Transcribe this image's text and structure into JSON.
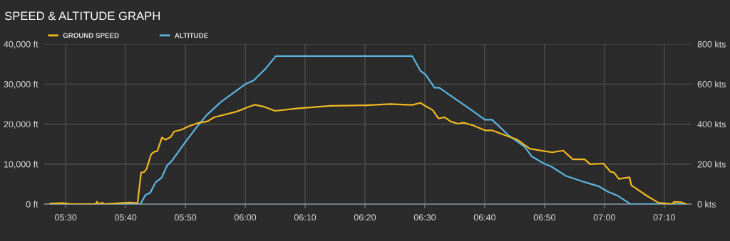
{
  "chart_data": {
    "type": "line",
    "title": "SPEED & ALTITUDE GRAPH",
    "series": [
      {
        "name": "GROUND SPEED",
        "color": "#f0b823",
        "axis": "y2",
        "x": [
          5.457,
          5.495,
          5.515,
          5.583,
          5.587,
          5.592,
          5.602,
          5.608,
          5.678,
          5.7,
          5.71,
          5.718,
          5.725,
          5.738,
          5.748,
          5.755,
          5.768,
          5.778,
          5.792,
          5.802,
          5.822,
          5.842,
          5.867,
          5.895,
          5.913,
          5.973,
          5.987,
          6.0,
          6.027,
          6.05,
          6.083,
          6.143,
          6.237,
          6.337,
          6.402,
          6.465,
          6.488,
          6.502,
          6.522,
          6.538,
          6.555,
          6.572,
          6.592,
          6.608,
          6.635,
          6.667,
          6.687,
          6.705,
          6.732,
          6.758,
          6.792,
          6.833,
          6.855,
          6.885,
          6.912,
          6.945,
          6.96,
          6.997,
          7.017,
          7.027,
          7.04,
          7.07,
          7.075,
          7.117,
          7.15,
          7.19,
          7.193,
          7.213,
          7.227
        ],
        "values": [
          3,
          5,
          0,
          0,
          12,
          0,
          7,
          0,
          8,
          5,
          158,
          160,
          175,
          250,
          263,
          265,
          333,
          322,
          335,
          363,
          372,
          389,
          405,
          414,
          434,
          461,
          470,
          480,
          497,
          488,
          466,
          478,
          491,
          494,
          500,
          496,
          506,
          490,
          470,
          428,
          434,
          413,
          402,
          407,
          393,
          369,
          369,
          357,
          339,
          322,
          277,
          265,
          259,
          268,
          224,
          224,
          200,
          203,
          162,
          158,
          126,
          134,
          94,
          43,
          7,
          0,
          11,
          10,
          0
        ]
      },
      {
        "name": "ALTITUDE",
        "color": "#5bb5e2",
        "x": [
          5.457,
          5.708,
          5.722,
          5.735,
          5.75,
          5.767,
          5.782,
          5.797,
          5.833,
          5.867,
          5.893,
          5.933,
          5.973,
          6.0,
          6.023,
          6.057,
          6.085,
          6.465,
          6.488,
          6.502,
          6.527,
          6.54,
          6.635,
          6.667,
          6.687,
          6.732,
          6.778,
          6.798,
          6.833,
          6.852,
          6.892,
          6.945,
          6.983,
          7.01,
          7.037,
          7.073,
          7.227
        ],
        "values": [
          0,
          0,
          2300,
          2800,
          5400,
          6600,
          9600,
          11000,
          15500,
          19500,
          22300,
          25600,
          28200,
          30000,
          30900,
          33900,
          37000,
          37000,
          33300,
          32400,
          29100,
          29100,
          23200,
          21100,
          21100,
          17300,
          14300,
          11900,
          10100,
          9400,
          7100,
          5500,
          4500,
          3100,
          2100,
          0,
          0
        ]
      }
    ],
    "xlim": [
      5.44,
      7.242
    ],
    "xticks": [
      {
        "value": 5.5,
        "label": "05:30"
      },
      {
        "value": 5.6667,
        "label": "05:40"
      },
      {
        "value": 5.8333,
        "label": "05:50"
      },
      {
        "value": 6,
        "label": "06:00"
      },
      {
        "value": 6.1667,
        "label": "06:10"
      },
      {
        "value": 6.3333,
        "label": "06:20"
      },
      {
        "value": 6.5,
        "label": "06:30"
      },
      {
        "value": 6.6667,
        "label": "06:40"
      },
      {
        "value": 6.8333,
        "label": "06:50"
      },
      {
        "value": 7,
        "label": "07:00"
      },
      {
        "value": 7.1667,
        "label": "07:10"
      }
    ],
    "ylim": [
      0,
      40000
    ],
    "yticks": [
      {
        "value": 0,
        "label": "0 ft"
      },
      {
        "value": 10000,
        "label": "10,000 ft"
      },
      {
        "value": 20000,
        "label": "20,000 ft"
      },
      {
        "value": 30000,
        "label": "30,000 ft"
      },
      {
        "value": 40000,
        "label": "40,000 ft"
      }
    ],
    "y2lim": [
      0,
      800
    ],
    "y2ticks": [
      {
        "value": 0,
        "label": "0 kts"
      },
      {
        "value": 200,
        "label": "200 kts"
      },
      {
        "value": 400,
        "label": "400 kts"
      },
      {
        "value": 600,
        "label": "600 kts"
      },
      {
        "value": 800,
        "label": "800 kts"
      }
    ],
    "grid": true,
    "legend": "top left",
    "marker": "none",
    "line_style": "solid"
  }
}
